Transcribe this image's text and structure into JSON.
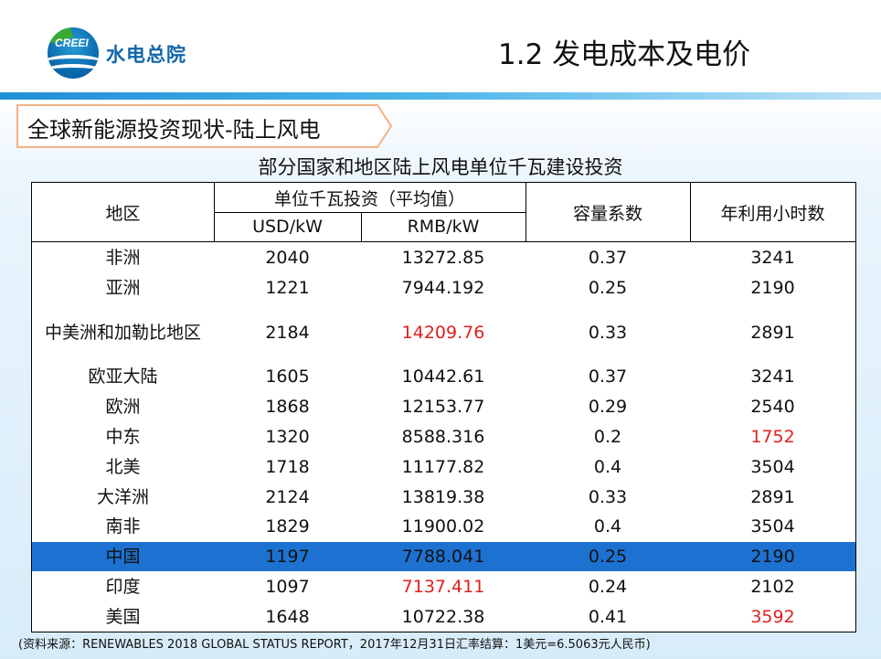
{
  "brand": {
    "logo_en": "CREEI",
    "logo_cn": "水电总院"
  },
  "slide_title": "1.2 发电成本及电价",
  "section_banner": "全球新能源投资现状-陆上风电",
  "table": {
    "title": "部分国家和地区陆上风电单位千瓦建设投资",
    "headers": {
      "region": "地区",
      "investment_group": "单位千瓦投资（平均值）",
      "usd": "USD/kW",
      "rmb": "RMB/kW",
      "capacity_factor": "容量系数",
      "annual_hours": "年利用小时数"
    },
    "colors": {
      "highlight_row": "#1d72d1",
      "emphasis_text": "#e02020"
    },
    "rows": [
      {
        "region": "非洲",
        "usd": "2040",
        "rmb": "13272.85",
        "cf": "0.37",
        "hours": "3241"
      },
      {
        "region": "亚洲",
        "usd": "1221",
        "rmb": "7944.192",
        "cf": "0.25",
        "hours": "2190"
      },
      {
        "region": "中美洲和加勒比地区",
        "usd": "2184",
        "rmb": "14209.76",
        "cf": "0.33",
        "hours": "2891"
      },
      {
        "region": "欧亚大陆",
        "usd": "1605",
        "rmb": "10442.61",
        "cf": "0.37",
        "hours": "3241"
      },
      {
        "region": "欧洲",
        "usd": "1868",
        "rmb": "12153.77",
        "cf": "0.29",
        "hours": "2540"
      },
      {
        "region": "中东",
        "usd": "1320",
        "rmb": "8588.316",
        "cf": "0.2",
        "hours": "1752"
      },
      {
        "region": "北美",
        "usd": "1718",
        "rmb": "11177.82",
        "cf": "0.4",
        "hours": "3504"
      },
      {
        "region": "大洋洲",
        "usd": "2124",
        "rmb": "13819.38",
        "cf": "0.33",
        "hours": "2891"
      },
      {
        "region": "南非",
        "usd": "1829",
        "rmb": "11900.02",
        "cf": "0.4",
        "hours": "3504"
      },
      {
        "region": "中国",
        "usd": "1197",
        "rmb": "7788.041",
        "cf": "0.25",
        "hours": "2190"
      },
      {
        "region": "印度",
        "usd": "1097",
        "rmb": "7137.411",
        "cf": "0.24",
        "hours": "2102"
      },
      {
        "region": "美国",
        "usd": "1648",
        "rmb": "10722.38",
        "cf": "0.41",
        "hours": "3592"
      }
    ]
  },
  "source_note": "(资料来源：RENEWABLES 2018 GLOBAL STATUS REPORT，2017年12月31日汇率结算：1美元=6.5063元人民币)"
}
